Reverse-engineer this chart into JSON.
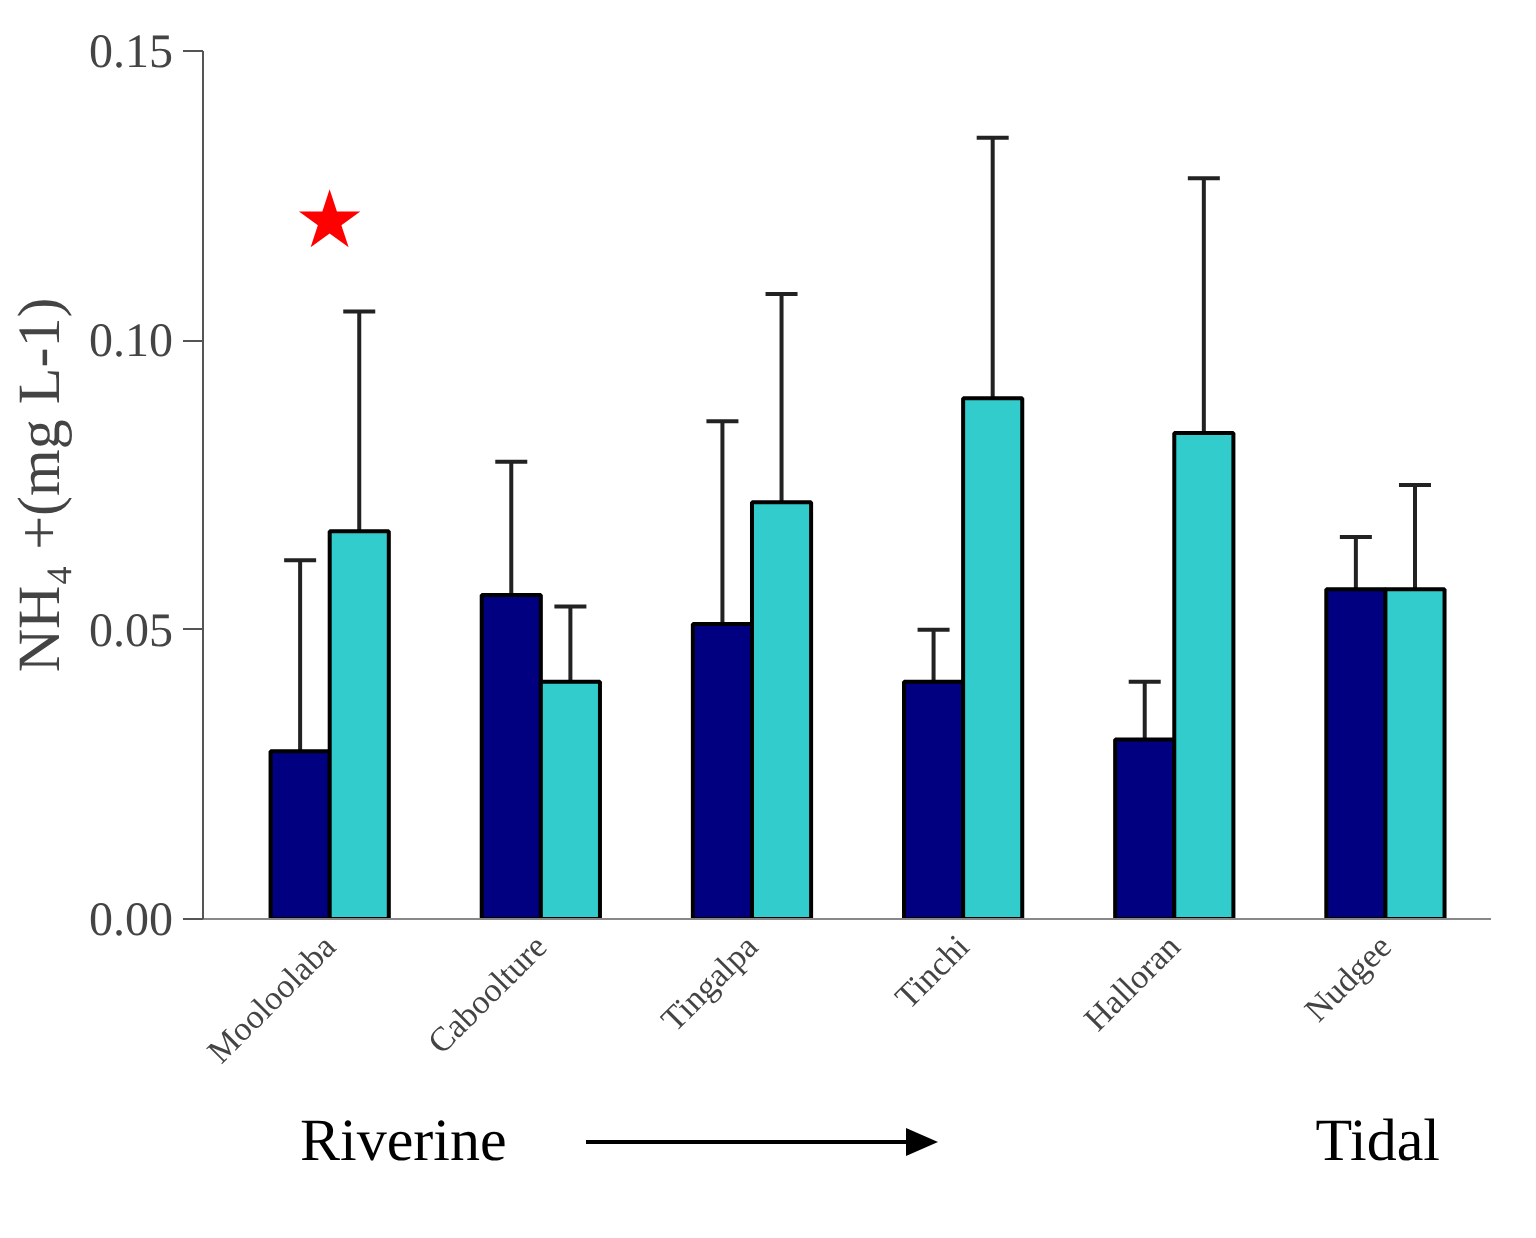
{
  "chart_data": {
    "type": "bar",
    "ylabel": "NH₄ +(mg L-1)",
    "categories": [
      "Mooloolaba",
      "Caboolture",
      "Tingalpa",
      "Tinchi",
      "Halloran",
      "Nudgee"
    ],
    "series": [
      {
        "color": "#000080",
        "values": [
          0.029,
          0.056,
          0.051,
          0.041,
          0.031,
          0.057
        ],
        "errors": [
          [
            0.029,
            0.062
          ],
          [
            0.056,
            0.079
          ],
          [
            0.051,
            0.086
          ],
          [
            0.041,
            0.05
          ],
          [
            0.031,
            0.041
          ],
          [
            0.057,
            0.066
          ]
        ]
      },
      {
        "color": "#33cccc",
        "values": [
          0.067,
          0.041,
          0.072,
          0.09,
          0.084,
          0.057
        ],
        "errors": [
          [
            0.067,
            0.105
          ],
          [
            0.041,
            0.054
          ],
          [
            0.072,
            0.108
          ],
          [
            0.09,
            0.135
          ],
          [
            0.084,
            0.128
          ],
          [
            0.057,
            0.075
          ]
        ]
      }
    ],
    "ylim": [
      0,
      0.15
    ],
    "yticks": [
      {
        "value": 0,
        "label": "0.00"
      },
      {
        "value": 0.05,
        "label": "0.05"
      },
      {
        "value": 0.1,
        "label": "0.10"
      },
      {
        "value": 0.15,
        "label": "0.15"
      }
    ],
    "grid": false,
    "annotations": [
      "★",
      "Riverine",
      "Tidal"
    ]
  }
}
